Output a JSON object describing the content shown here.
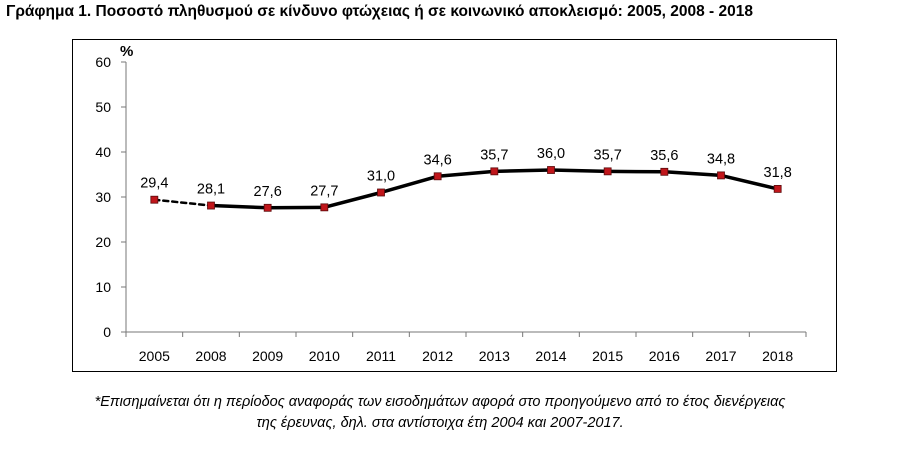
{
  "chart_data": {
    "type": "line",
    "title": "Γράφημα 1. Ποσοστό πληθυσμού σε κίνδυνο φτώχειας ή σε κοινωνικό αποκλεισμό: 2005, 2008 - 2018",
    "ylabel": "%",
    "xlabel": "",
    "categories": [
      "2005",
      "2008",
      "2009",
      "2010",
      "2011",
      "2012",
      "2013",
      "2014",
      "2015",
      "2016",
      "2017",
      "2018"
    ],
    "series": [
      {
        "name": "Ποσοστό πληθυσμού σε κίνδυνο φτώχειας ή σε κοινωνικό αποκλεισμό",
        "values": [
          29.4,
          28.1,
          27.6,
          27.7,
          31.0,
          34.6,
          35.7,
          36.0,
          35.7,
          35.6,
          34.8,
          31.8
        ],
        "value_labels": [
          "29,4",
          "28,1",
          "27,6",
          "27,7",
          "31,0",
          "34,6",
          "35,7",
          "36,0",
          "35,7",
          "35,6",
          "34,8",
          "31,8"
        ],
        "color": "#000000",
        "marker_color": "#c0161b",
        "dashed_segments": [
          [
            0,
            1
          ]
        ]
      }
    ],
    "ylim": [
      0,
      60
    ],
    "yticks": [
      0,
      10,
      20,
      30,
      40,
      50,
      60
    ],
    "grid": false,
    "legend": "none"
  },
  "note": {
    "line1": "*Επισημαίνεται ότι η περίοδος αναφοράς των εισοδημάτων αφορά στο προηγούμενο από το έτος διενέργειας",
    "line2": "της έρευνας, δηλ. στα αντίστοιχα έτη 2004 και 2007-2017."
  }
}
